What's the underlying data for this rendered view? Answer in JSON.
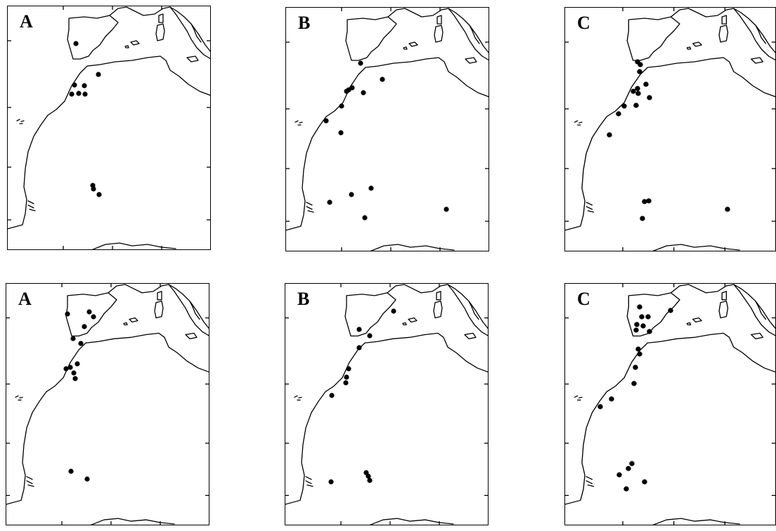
{
  "panels": [
    {
      "id": "top-a",
      "label": "A",
      "localities": [
        [
          108,
          62
        ],
        [
          140,
          106
        ],
        [
          106,
          121
        ],
        [
          120,
          122
        ],
        [
          102,
          134
        ],
        [
          112,
          133
        ],
        [
          121,
          134
        ],
        [
          132,
          264
        ],
        [
          133,
          269
        ],
        [
          141,
          277
        ]
      ]
    },
    {
      "id": "top-b",
      "label": "B",
      "localities": [
        [
          513,
          90
        ],
        [
          544,
          113
        ],
        [
          493,
          130
        ],
        [
          496,
          128
        ],
        [
          501,
          125
        ],
        [
          517,
          132
        ],
        [
          486,
          151
        ],
        [
          464,
          172
        ],
        [
          485,
          189
        ],
        [
          528,
          268
        ],
        [
          500,
          277
        ],
        [
          469,
          288
        ],
        [
          519,
          310
        ],
        [
          635,
          298
        ]
      ]
    },
    {
      "id": "top-c",
      "label": "C",
      "localities": [
        [
          907,
          88
        ],
        [
          911,
          92
        ],
        [
          910,
          102
        ],
        [
          919,
          120
        ],
        [
          901,
          130
        ],
        [
          907,
          126
        ],
        [
          908,
          133
        ],
        [
          924,
          139
        ],
        [
          888,
          151
        ],
        [
          905,
          150
        ],
        [
          880,
          162
        ],
        [
          867,
          192
        ],
        [
          917,
          287
        ],
        [
          923,
          286
        ],
        [
          914,
          311
        ],
        [
          1035,
          298
        ]
      ]
    },
    {
      "id": "bottom-a",
      "label": "A",
      "localities": [
        [
          96,
          447
        ],
        [
          127,
          444
        ],
        [
          133,
          451
        ],
        [
          120,
          465
        ],
        [
          104,
          482
        ],
        [
          115,
          489
        ],
        [
          94,
          525
        ],
        [
          100,
          523
        ],
        [
          110,
          518
        ],
        [
          105,
          531
        ],
        [
          107,
          539
        ],
        [
          101,
          671
        ],
        [
          124,
          682
        ]
      ]
    },
    {
      "id": "bottom-b",
      "label": "B",
      "localities": [
        [
          560,
          443
        ],
        [
          511,
          469
        ],
        [
          526,
          478
        ],
        [
          511,
          495
        ],
        [
          496,
          525
        ],
        [
          493,
          537
        ],
        [
          492,
          545
        ],
        [
          472,
          563
        ],
        [
          521,
          673
        ],
        [
          524,
          678
        ],
        [
          526,
          684
        ],
        [
          471,
          686
        ]
      ]
    },
    {
      "id": "bottom-c",
      "label": "C",
      "localities": [
        [
          910,
          437
        ],
        [
          913,
          451
        ],
        [
          922,
          451
        ],
        [
          906,
          462
        ],
        [
          915,
          464
        ],
        [
          954,
          442
        ],
        [
          924,
          472
        ],
        [
          905,
          470
        ],
        [
          908,
          497
        ],
        [
          910,
          504
        ],
        [
          904,
          523
        ],
        [
          902,
          546
        ],
        [
          870,
          568
        ],
        [
          854,
          579
        ],
        [
          899,
          660
        ],
        [
          894,
          667
        ],
        [
          881,
          676
        ],
        [
          917,
          686
        ],
        [
          891,
          696
        ]
      ]
    }
  ]
}
